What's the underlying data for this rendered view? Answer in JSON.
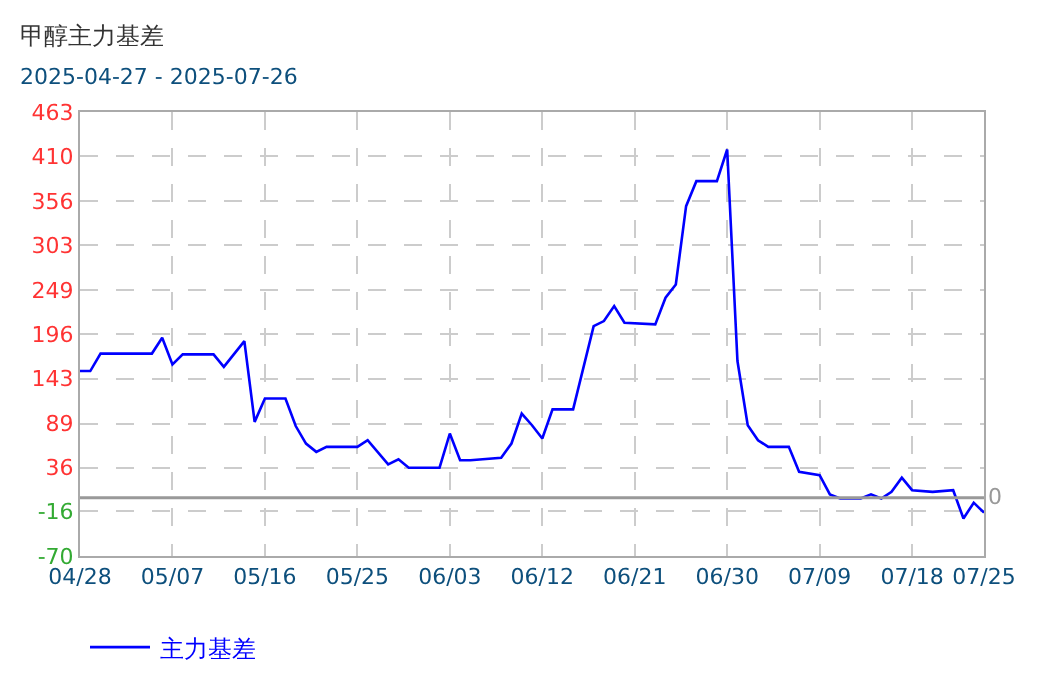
{
  "chart_data": {
    "type": "line",
    "title": "甲醇主力基差",
    "subtitle": "2025-04-27 - 2025-07-26",
    "x": [
      "2025-04-28",
      "2025-04-29",
      "2025-04-30",
      "2025-05-05",
      "2025-05-06",
      "2025-05-07",
      "2025-05-08",
      "2025-05-11",
      "2025-05-12",
      "2025-05-14",
      "2025-05-15",
      "2025-05-16",
      "2025-05-18",
      "2025-05-19",
      "2025-05-20",
      "2025-05-21",
      "2025-05-22",
      "2025-05-25",
      "2025-05-26",
      "2025-05-28",
      "2025-05-29",
      "2025-05-30",
      "2025-06-02",
      "2025-06-03",
      "2025-06-04",
      "2025-06-05",
      "2025-06-08",
      "2025-06-09",
      "2025-06-10",
      "2025-06-11",
      "2025-06-12",
      "2025-06-13",
      "2025-06-15",
      "2025-06-17",
      "2025-06-18",
      "2025-06-19",
      "2025-06-20",
      "2025-06-23",
      "2025-06-24",
      "2025-06-25",
      "2025-06-26",
      "2025-06-27",
      "2025-06-29",
      "2025-06-30",
      "2025-07-01",
      "2025-07-02",
      "2025-07-03",
      "2025-07-04",
      "2025-07-06",
      "2025-07-07",
      "2025-07-09",
      "2025-07-10",
      "2025-07-11",
      "2025-07-13",
      "2025-07-14",
      "2025-07-15",
      "2025-07-16",
      "2025-07-17",
      "2025-07-18",
      "2025-07-20",
      "2025-07-22",
      "2025-07-23",
      "2025-07-24",
      "2025-07-25"
    ],
    "series": [
      {
        "name": "主力基差",
        "color": "#0000ff",
        "values": [
          152,
          152,
          173,
          173,
          192,
          160,
          172,
          172,
          157,
          188,
          91,
          119,
          119,
          86,
          65,
          55,
          61,
          61,
          69,
          40,
          46,
          36,
          36,
          77,
          45,
          45,
          48,
          65,
          101,
          87,
          71,
          106,
          106,
          206,
          212,
          230,
          210,
          208,
          240,
          256,
          350,
          380,
          380,
          418,
          164,
          87,
          69,
          61,
          61,
          31,
          27,
          4,
          -1,
          -1,
          4,
          -1,
          7,
          24,
          9,
          7,
          9,
          -25,
          -6,
          -18
        ]
      }
    ],
    "xlim": [
      "2025-04-28",
      "2025-07-25"
    ],
    "xticks": [
      {
        "value": "2025-04-28",
        "label": "04/28"
      },
      {
        "value": "2025-05-07",
        "label": "05/07"
      },
      {
        "value": "2025-05-16",
        "label": "05/16"
      },
      {
        "value": "2025-05-25",
        "label": "05/25"
      },
      {
        "value": "2025-06-03",
        "label": "06/03"
      },
      {
        "value": "2025-06-12",
        "label": "06/12"
      },
      {
        "value": "2025-06-21",
        "label": "06/21"
      },
      {
        "value": "2025-06-30",
        "label": "06/30"
      },
      {
        "value": "2025-07-09",
        "label": "07/09"
      },
      {
        "value": "2025-07-18",
        "label": "07/18"
      },
      {
        "value": "2025-07-25",
        "label": "07/25"
      }
    ],
    "ylim": [
      -70,
      463
    ],
    "yticks": [
      -70,
      -16,
      36,
      89,
      143,
      196,
      249,
      303,
      356,
      410,
      463
    ],
    "ref_lines": [
      {
        "axis": "y",
        "value": 0,
        "label": "0",
        "color": "#999999"
      }
    ],
    "grid": true,
    "legend": "bottom left",
    "marker": "none",
    "line_style": "solid"
  }
}
